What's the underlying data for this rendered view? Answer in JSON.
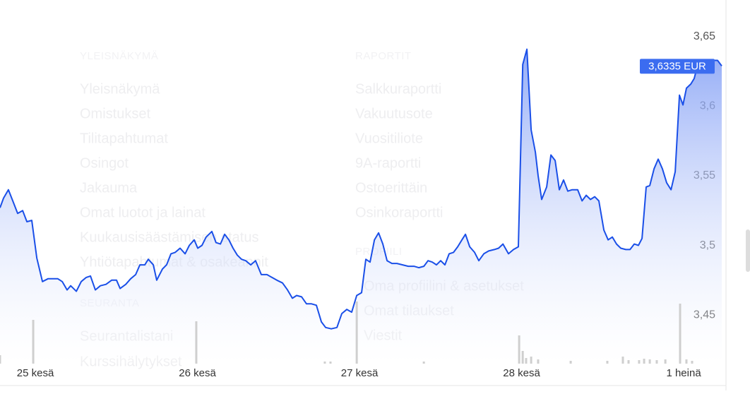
{
  "menu": {
    "columns": [
      {
        "header": "YLEISNÄKYMÄ",
        "items": [
          "Yleisnäkymä",
          "Omistukset",
          "Tilitapahtumat",
          "Osingot",
          "Jakauma",
          "Omat luotot ja lainat",
          "Kuukausisäästämisen status",
          "Yhtiötapahtumat & osakeannit"
        ]
      },
      {
        "header": "SEURANTA",
        "items": [
          "Seurantalistani",
          "Kurssihälytykset"
        ]
      },
      {
        "header": "RAPORTIT",
        "items": [
          "Salkkuraportti",
          "Vakuutusote",
          "Vuositiliote",
          "9A-raportti",
          "Ostoerittäin",
          "Osinkoraportti"
        ]
      },
      {
        "header": "PROFIILI",
        "items": [
          "Oma profiilini & asetukset",
          "Omat tilaukset",
          "Viestit"
        ]
      }
    ]
  },
  "chart_data": {
    "type": "line",
    "series": [
      {
        "color": "#1a4fe8",
        "x": [
          -0.218,
          -0.196,
          -0.166,
          -0.139,
          -0.109,
          -0.078,
          -0.052,
          -0.022,
          0.009,
          0.044,
          0.078,
          0.109,
          0.139,
          0.166,
          0.196,
          0.218,
          0.253,
          0.283,
          0.314,
          0.34,
          0.37,
          0.401,
          0.436,
          0.471,
          0.501,
          0.523,
          0.558,
          0.588,
          0.619,
          0.645,
          0.675,
          0.697,
          0.728,
          0.749,
          0.784,
          0.81,
          0.837,
          0.863,
          0.893,
          0.924,
          0.95,
          0.98,
          1.002,
          1.028,
          1.054,
          1.089,
          1.115,
          1.142,
          1.168,
          1.194,
          1.22,
          1.246,
          1.272,
          1.298,
          1.329,
          1.359,
          1.394,
          1.429,
          1.46,
          1.49,
          1.525,
          1.556,
          1.586,
          1.612,
          1.643,
          1.673,
          1.704,
          1.734,
          1.765,
          1.791,
          1.826,
          1.861,
          1.891,
          1.922,
          1.952,
          1.983,
          2.013,
          2.039,
          2.065,
          2.092,
          2.118,
          2.144,
          2.17,
          2.2,
          2.231,
          2.266,
          2.301,
          2.336,
          2.366,
          2.397,
          2.423,
          2.449,
          2.475,
          2.501,
          2.527,
          2.553,
          2.58,
          2.606,
          2.632,
          2.654,
          2.68,
          2.71,
          2.736,
          2.767,
          2.797,
          2.832,
          2.858,
          2.885,
          2.919,
          2.95,
          2.98,
          3.007,
          3.033,
          3.059,
          3.085,
          3.102,
          3.124,
          3.155,
          3.181,
          3.207,
          3.233,
          3.259,
          3.285,
          3.312,
          3.346,
          3.373,
          3.399,
          3.425,
          3.451,
          3.477,
          3.508,
          3.534,
          3.56,
          3.586,
          3.612,
          3.643,
          3.669,
          3.695,
          3.721,
          3.743,
          3.769,
          3.791,
          3.817,
          3.843,
          3.869,
          3.895,
          3.922,
          3.948,
          3.974,
          3.996,
          4.017,
          4.044,
          4.065,
          4.087,
          4.118,
          4.183,
          4.209,
          4.235
        ],
        "values": [
          3.527,
          3.534,
          3.54,
          3.532,
          3.523,
          3.525,
          3.517,
          3.518,
          3.491,
          3.474,
          3.476,
          3.476,
          3.476,
          3.474,
          3.468,
          3.471,
          3.467,
          3.474,
          3.477,
          3.478,
          3.468,
          3.471,
          3.472,
          3.475,
          3.475,
          3.469,
          3.472,
          3.476,
          3.479,
          3.486,
          3.486,
          3.49,
          3.486,
          3.475,
          3.483,
          3.486,
          3.494,
          3.495,
          3.498,
          3.494,
          3.5,
          3.504,
          3.498,
          3.5,
          3.506,
          3.51,
          3.502,
          3.501,
          3.508,
          3.504,
          3.498,
          3.493,
          3.49,
          3.489,
          3.486,
          3.489,
          3.479,
          3.479,
          3.477,
          3.475,
          3.473,
          3.468,
          3.462,
          3.464,
          3.463,
          3.458,
          3.458,
          3.457,
          3.445,
          3.441,
          3.44,
          3.441,
          3.451,
          3.454,
          3.452,
          3.464,
          3.466,
          3.49,
          3.488,
          3.504,
          3.509,
          3.501,
          3.489,
          3.487,
          3.487,
          3.486,
          3.485,
          3.485,
          3.484,
          3.485,
          3.489,
          3.488,
          3.486,
          3.489,
          3.486,
          3.494,
          3.495,
          3.499,
          3.504,
          3.508,
          3.499,
          3.495,
          3.489,
          3.494,
          3.496,
          3.497,
          3.498,
          3.501,
          3.494,
          3.497,
          3.499,
          3.63,
          3.641,
          3.583,
          3.567,
          3.55,
          3.533,
          3.542,
          3.565,
          3.561,
          3.54,
          3.547,
          3.539,
          3.54,
          3.54,
          3.532,
          3.536,
          3.533,
          3.535,
          3.532,
          3.511,
          3.504,
          3.506,
          3.501,
          3.498,
          3.497,
          3.497,
          3.501,
          3.5,
          3.505,
          3.542,
          3.543,
          3.555,
          3.562,
          3.555,
          3.545,
          3.54,
          3.553,
          3.608,
          3.601,
          3.613,
          3.616,
          3.62,
          3.63,
          3.633,
          3.633,
          3.633,
          3.629
        ]
      }
    ],
    "price_label": "3,6335 EUR",
    "xlim": [
      -0.218,
      4.235
    ],
    "ylim": [
      3.415,
      3.6764
    ],
    "xticks": [
      {
        "value": 0,
        "label": "25 kesä"
      },
      {
        "value": 1,
        "label": "26 kesä"
      },
      {
        "value": 2,
        "label": "27 kesä"
      },
      {
        "value": 3,
        "label": "28 kesä"
      },
      {
        "value": 4,
        "label": "1 heinä"
      }
    ],
    "yticks": [
      {
        "value": 3.45,
        "label": "3,45"
      },
      {
        "value": 3.5,
        "label": "3,5"
      },
      {
        "value": 3.55,
        "label": "3,55"
      },
      {
        "value": 3.6,
        "label": "3,6"
      },
      {
        "value": 3.65,
        "label": "3,65"
      }
    ],
    "volume": {
      "color": "#cfcfcf",
      "x": [
        -0.218,
        -0.013,
        0.993,
        1.786,
        1.821,
        1.983,
        2.397,
        2.985,
        3.007,
        3.028,
        3.059,
        3.102,
        3.303,
        3.529,
        3.625,
        3.66,
        3.725,
        3.756,
        3.791,
        3.834,
        3.887,
        3.978,
        4.017,
        4.052
      ],
      "values": [
        12,
        62,
        60,
        3,
        3,
        88,
        3,
        40,
        18,
        8,
        10,
        6,
        4,
        4,
        10,
        5,
        5,
        7,
        6,
        5,
        6,
        85,
        6,
        4
      ]
    }
  }
}
